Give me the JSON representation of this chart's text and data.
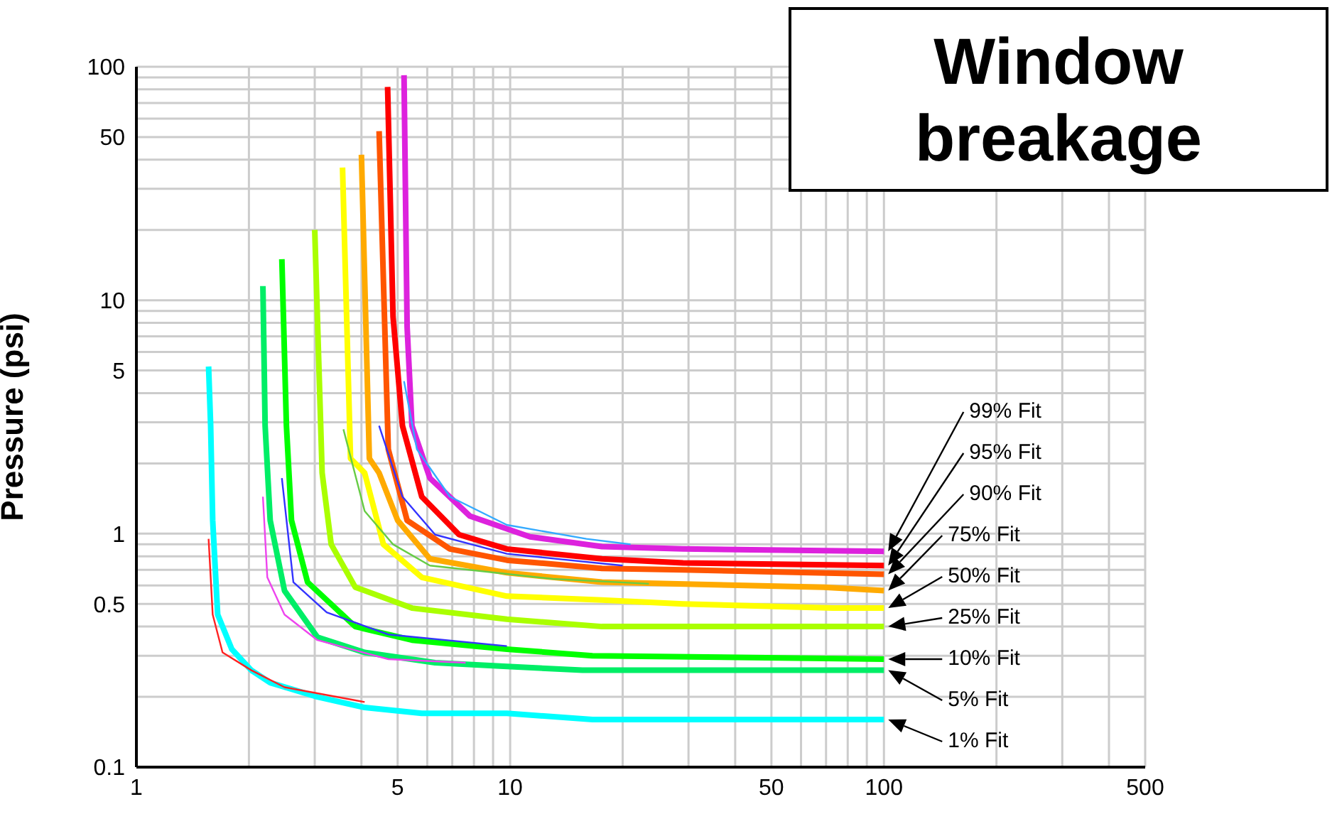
{
  "chart_data": {
    "type": "line",
    "title": "Window breakage",
    "ylabel": "Pressure (psi)",
    "log": "xy",
    "grid": true,
    "xlim": [
      1,
      500
    ],
    "ylim": [
      0.1,
      100
    ],
    "xticks": [
      1,
      {
        "value": 2,
        "label": null
      },
      {
        "value": 3,
        "label": null
      },
      {
        "value": 4,
        "label": null
      },
      5,
      {
        "value": 6,
        "label": null
      },
      {
        "value": 7,
        "label": null
      },
      {
        "value": 8,
        "label": null
      },
      {
        "value": 9,
        "label": null
      },
      10,
      {
        "value": 20,
        "label": null
      },
      {
        "value": 30,
        "label": null
      },
      {
        "value": 40,
        "label": null
      },
      50,
      {
        "value": 60,
        "label": null
      },
      {
        "value": 70,
        "label": null
      },
      {
        "value": 80,
        "label": null
      },
      {
        "value": 90,
        "label": null
      },
      100,
      {
        "value": 200,
        "label": null
      },
      {
        "value": 300,
        "label": null
      },
      {
        "value": 400,
        "label": null
      },
      500
    ],
    "yticks": [
      0.1,
      {
        "value": 0.2,
        "label": null
      },
      {
        "value": 0.3,
        "label": null
      },
      {
        "value": 0.4,
        "label": null
      },
      0.5,
      {
        "value": 0.6,
        "label": null
      },
      {
        "value": 0.7,
        "label": null
      },
      {
        "value": 0.8,
        "label": null
      },
      {
        "value": 0.9,
        "label": null
      },
      1,
      {
        "value": 2,
        "label": null
      },
      {
        "value": 3,
        "label": null
      },
      {
        "value": 4,
        "label": null
      },
      5,
      {
        "value": 6,
        "label": null
      },
      {
        "value": 7,
        "label": null
      },
      {
        "value": 8,
        "label": null
      },
      {
        "value": 9,
        "label": null
      },
      10,
      {
        "value": 20,
        "label": null
      },
      {
        "value": 30,
        "label": null
      },
      {
        "value": 40,
        "label": null
      },
      50,
      {
        "value": 60,
        "label": null
      },
      {
        "value": 70,
        "label": null
      },
      {
        "value": 80,
        "label": null
      },
      {
        "value": 90,
        "label": null
      },
      100
    ],
    "series": [
      {
        "name": "99% Fit",
        "color": "#dd22dd",
        "x": [
          5.2,
          5.3,
          5.46,
          6.1,
          7.8,
          11.3,
          17.6,
          29,
          100
        ],
        "values": [
          92,
          7.7,
          2.9,
          1.73,
          1.19,
          0.97,
          0.88,
          0.86,
          0.84
        ]
      },
      {
        "name": "95% Fit",
        "color": "#ff0000",
        "x": [
          4.7,
          4.86,
          5.15,
          5.8,
          7.3,
          9.8,
          17.6,
          29,
          100
        ],
        "values": [
          82,
          8.5,
          2.9,
          1.44,
          0.99,
          0.86,
          0.78,
          0.75,
          0.73
        ]
      },
      {
        "name": "90% Fit",
        "color": "#ff5500",
        "x": [
          4.46,
          4.72,
          5.3,
          6.9,
          9.8,
          17.6,
          29,
          100
        ],
        "values": [
          53,
          2.3,
          1.14,
          0.86,
          0.77,
          0.71,
          0.7,
          0.67
        ]
      },
      {
        "name": "75% Fit",
        "color": "#ffaa00",
        "x": [
          4,
          4.2,
          4.46,
          5,
          6.1,
          9.8,
          17.6,
          69,
          100
        ],
        "values": [
          42,
          2.1,
          1.82,
          1.14,
          0.78,
          0.68,
          0.62,
          0.59,
          0.57
        ]
      },
      {
        "name": "50% Fit",
        "color": "#ffff00",
        "x": [
          3.56,
          3.74,
          4.08,
          4.58,
          5.8,
          9.8,
          17.6,
          29,
          73,
          100
        ],
        "values": [
          37,
          2.1,
          1.82,
          0.9,
          0.65,
          0.54,
          0.52,
          0.5,
          0.48,
          0.48
        ]
      },
      {
        "name": "25% Fit",
        "color": "#aaff00",
        "x": [
          3,
          3.14,
          3.32,
          3.85,
          5.46,
          9.8,
          17.6,
          100
        ],
        "values": [
          20,
          1.82,
          0.9,
          0.59,
          0.48,
          0.43,
          0.4,
          0.4
        ]
      },
      {
        "name": "10% Fit",
        "color": "#00ff00",
        "x": [
          2.45,
          2.52,
          2.6,
          2.87,
          3.85,
          5.46,
          9.8,
          16.6,
          100
        ],
        "values": [
          15,
          2.9,
          1.14,
          0.62,
          0.4,
          0.35,
          0.32,
          0.3,
          0.29
        ]
      },
      {
        "name": "5% Fit",
        "color": "#00ee66",
        "x": [
          2.18,
          2.21,
          2.28,
          2.49,
          3.05,
          4.08,
          6.3,
          9.8,
          15.6,
          100
        ],
        "values": [
          11.5,
          2.9,
          1.14,
          0.57,
          0.36,
          0.31,
          0.28,
          0.27,
          0.26,
          0.26
        ]
      },
      {
        "name": "1% Fit",
        "color": "#00ffff",
        "x": [
          1.56,
          1.58,
          1.6,
          1.65,
          1.8,
          2.03,
          2.28,
          3.05,
          4.08,
          5.8,
          9.8,
          16.6,
          100
        ],
        "values": [
          5.2,
          2.9,
          1.14,
          0.45,
          0.32,
          0.26,
          0.23,
          0.2,
          0.18,
          0.17,
          0.17,
          0.16,
          0.16
        ]
      },
      {
        "color": "#ff2222",
        "x": [
          1.56,
          1.6,
          1.7,
          2.03,
          2.49,
          4.08
        ],
        "values": [
          0.95,
          0.45,
          0.31,
          0.26,
          0.22,
          0.19
        ]
      },
      {
        "color": "#ee44ee",
        "x": [
          2.18,
          2.24,
          2.49,
          3.05,
          4.72,
          7.6
        ],
        "values": [
          1.44,
          0.65,
          0.45,
          0.35,
          0.29,
          0.28
        ]
      },
      {
        "color": "#3333ff",
        "x": [
          2.45,
          2.63,
          3.23,
          4.72,
          9.8
        ],
        "values": [
          1.73,
          0.62,
          0.46,
          0.37,
          0.33
        ]
      },
      {
        "color": "#66cc44",
        "x": [
          3.58,
          4.08,
          4.86,
          6.1,
          13,
          23.5
        ],
        "values": [
          2.8,
          1.25,
          0.9,
          0.73,
          0.64,
          0.61
        ]
      },
      {
        "color": "#3333ff",
        "x": [
          4.46,
          5.15,
          6.3,
          9.8,
          20
        ],
        "values": [
          2.9,
          1.44,
          0.99,
          0.82,
          0.73
        ]
      },
      {
        "color": "#33aaff",
        "x": [
          5.2,
          5.63,
          6.9,
          9.8,
          16,
          21
        ],
        "values": [
          4.5,
          2.3,
          1.44,
          1.09,
          0.95,
          0.9
        ]
      }
    ]
  }
}
